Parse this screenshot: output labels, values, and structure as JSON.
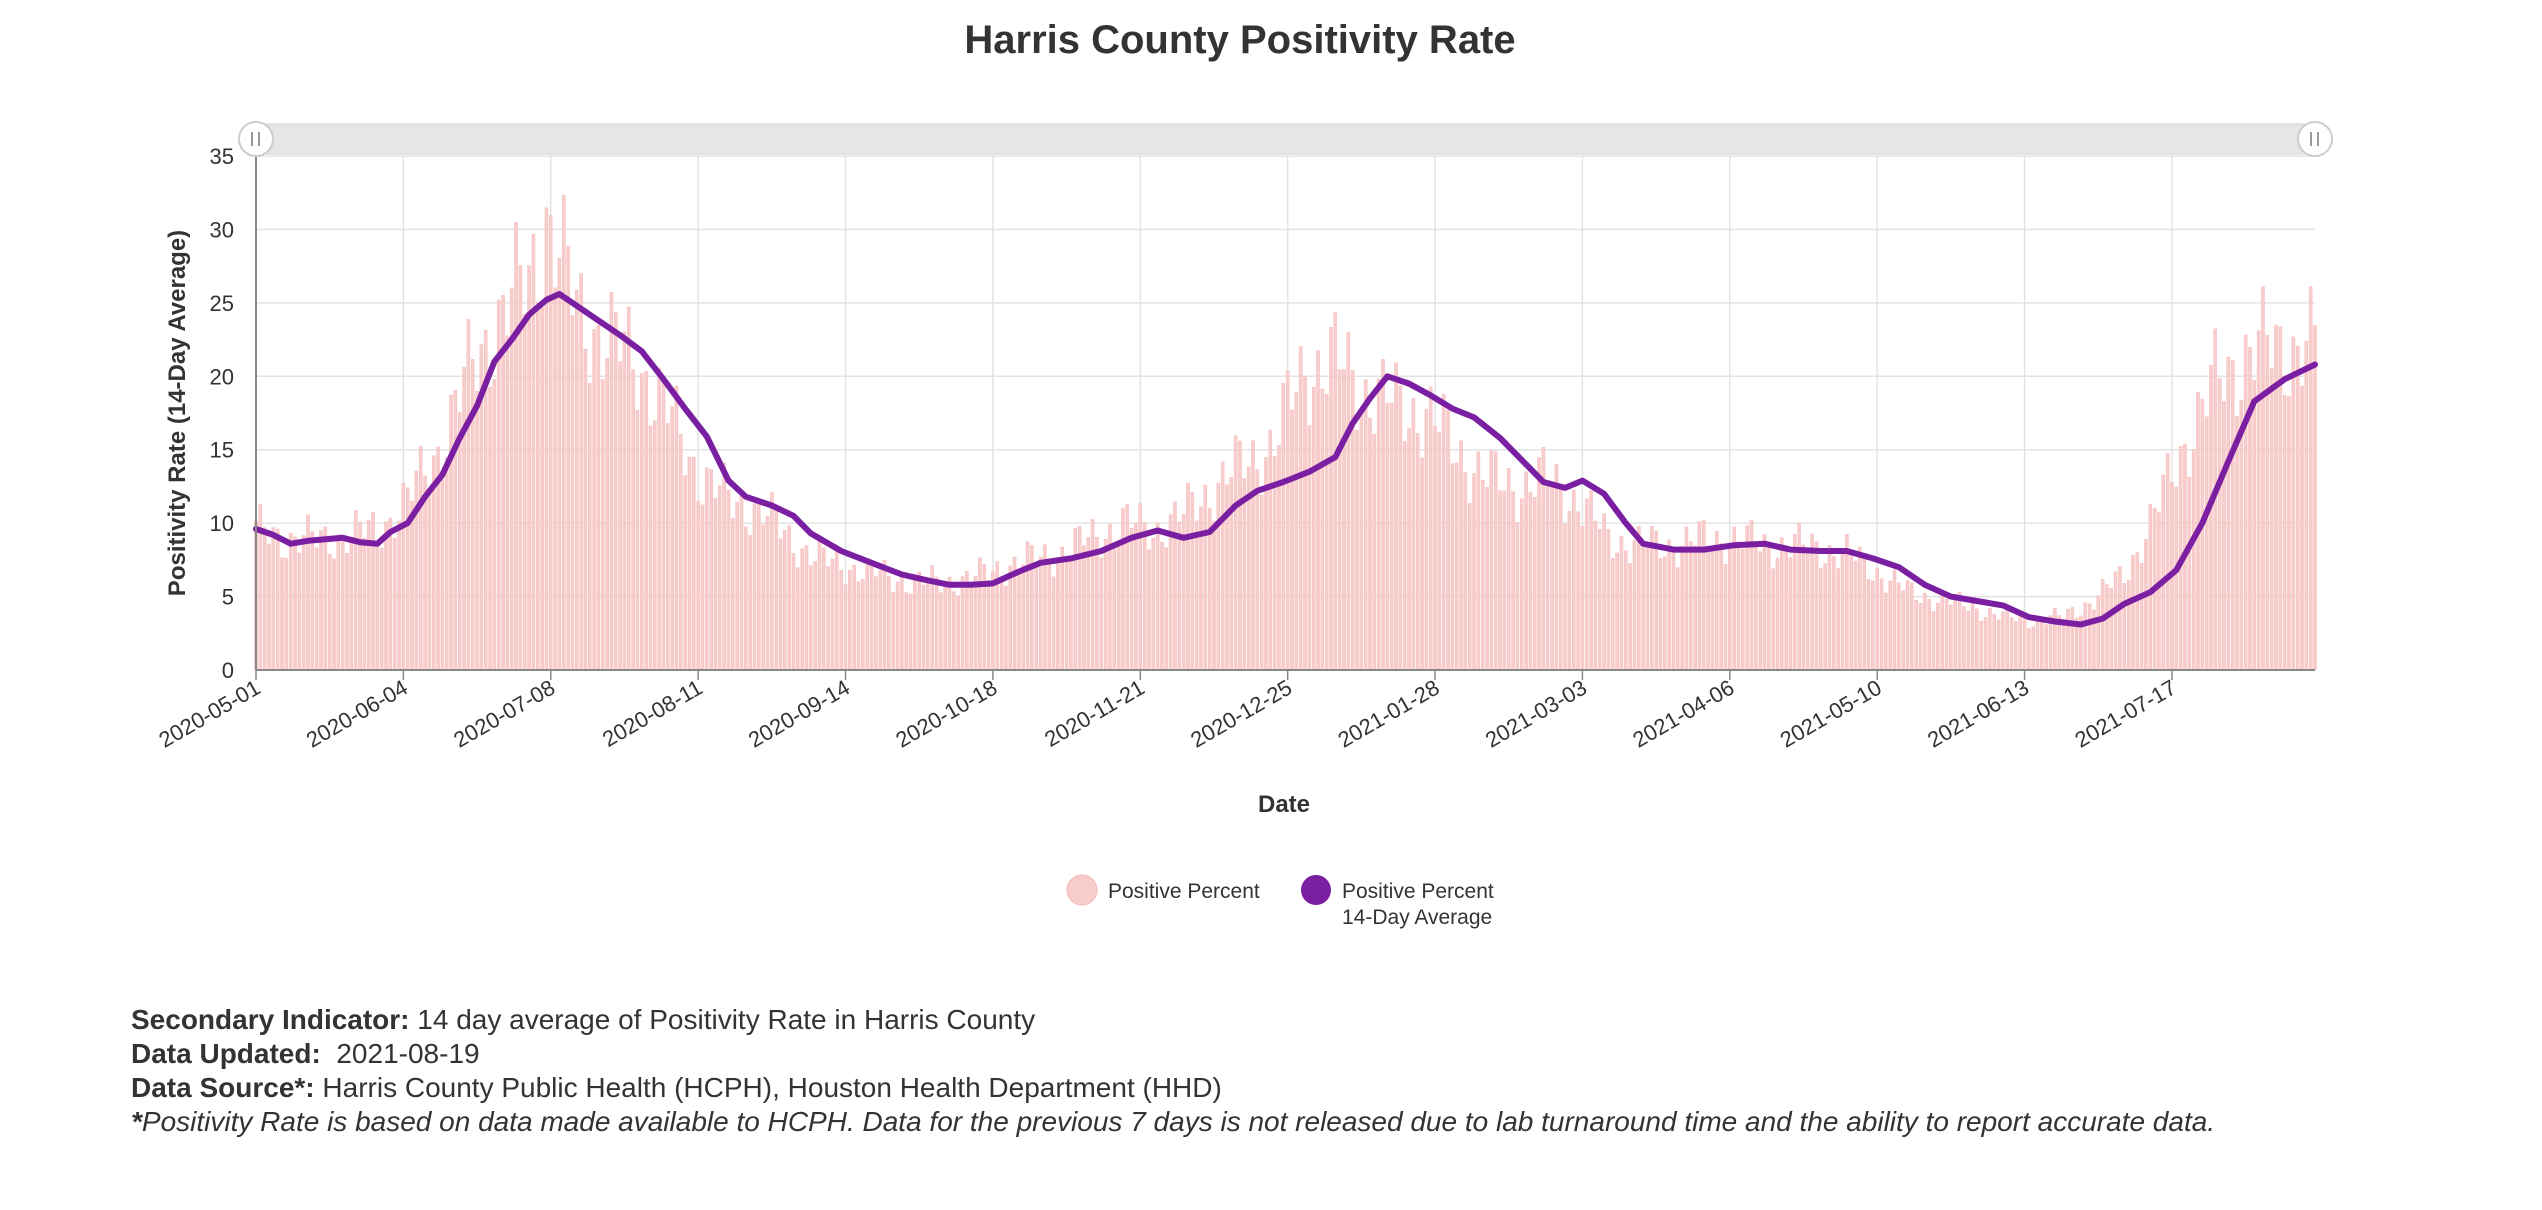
{
  "chart_data": {
    "type": "bar",
    "title": "Harris County Positivity Rate",
    "xlabel": "Date",
    "ylabel": "Positivity Rate (14-Day Average)",
    "ylim": [
      0,
      35
    ],
    "yticks": [
      0,
      5,
      10,
      15,
      20,
      25,
      30,
      35
    ],
    "x_start": "2020-05-01",
    "x_end": "2021-08-19",
    "xticks": [
      "2020-05-01",
      "2020-06-04",
      "2020-07-08",
      "2020-08-11",
      "2020-09-14",
      "2020-10-18",
      "2020-11-21",
      "2020-12-25",
      "2021-01-28",
      "2021-03-03",
      "2021-04-06",
      "2021-05-10",
      "2021-06-13",
      "2021-07-17"
    ],
    "grid": true,
    "legend_position": "bottom-center",
    "series": [
      {
        "name": "Positive Percent",
        "type": "bar",
        "color": "#f9cccc",
        "points": [
          [
            "2020-05-01",
            9.5
          ],
          [
            "2020-05-08",
            9.0
          ],
          [
            "2020-05-15",
            8.8
          ],
          [
            "2020-05-22",
            9.2
          ],
          [
            "2020-05-29",
            9.5
          ],
          [
            "2020-06-05",
            11.5
          ],
          [
            "2020-06-12",
            15.0
          ],
          [
            "2020-06-19",
            20.0
          ],
          [
            "2020-06-26",
            24.0
          ],
          [
            "2020-07-03",
            26.5
          ],
          [
            "2020-07-07",
            31.0
          ],
          [
            "2020-07-14",
            24.5
          ],
          [
            "2020-07-21",
            22.5
          ],
          [
            "2020-07-28",
            21.0
          ],
          [
            "2020-08-04",
            17.5
          ],
          [
            "2020-08-11",
            13.5
          ],
          [
            "2020-08-18",
            11.5
          ],
          [
            "2020-08-25",
            11.0
          ],
          [
            "2020-09-01",
            9.0
          ],
          [
            "2020-09-08",
            7.5
          ],
          [
            "2020-09-15",
            7.0
          ],
          [
            "2020-09-22",
            6.5
          ],
          [
            "2020-09-29",
            6.0
          ],
          [
            "2020-10-06",
            6.0
          ],
          [
            "2020-10-13",
            6.2
          ],
          [
            "2020-10-20",
            7.0
          ],
          [
            "2020-10-27",
            7.5
          ],
          [
            "2020-11-03",
            8.0
          ],
          [
            "2020-11-10",
            9.0
          ],
          [
            "2020-11-17",
            10.0
          ],
          [
            "2020-11-24",
            9.5
          ],
          [
            "2020-12-01",
            10.5
          ],
          [
            "2020-12-08",
            12.5
          ],
          [
            "2020-12-15",
            14.0
          ],
          [
            "2020-12-22",
            15.5
          ],
          [
            "2020-12-29",
            20.5
          ],
          [
            "2021-01-05",
            21.0
          ],
          [
            "2021-01-12",
            19.0
          ],
          [
            "2021-01-19",
            18.0
          ],
          [
            "2021-01-26",
            17.5
          ],
          [
            "2021-02-02",
            15.0
          ],
          [
            "2021-02-09",
            13.0
          ],
          [
            "2021-02-16",
            12.5
          ],
          [
            "2021-02-23",
            13.0
          ],
          [
            "2021-03-02",
            11.5
          ],
          [
            "2021-03-09",
            9.0
          ],
          [
            "2021-03-16",
            8.5
          ],
          [
            "2021-03-23",
            8.5
          ],
          [
            "2021-03-30",
            8.8
          ],
          [
            "2021-04-06",
            9.0
          ],
          [
            "2021-04-13",
            8.5
          ],
          [
            "2021-04-20",
            8.5
          ],
          [
            "2021-04-27",
            8.3
          ],
          [
            "2021-05-04",
            7.8
          ],
          [
            "2021-05-11",
            6.5
          ],
          [
            "2021-05-18",
            5.2
          ],
          [
            "2021-05-25",
            4.8
          ],
          [
            "2021-06-01",
            4.3
          ],
          [
            "2021-06-08",
            3.6
          ],
          [
            "2021-06-15",
            3.4
          ],
          [
            "2021-06-22",
            3.6
          ],
          [
            "2021-06-29",
            4.8
          ],
          [
            "2021-07-06",
            6.5
          ],
          [
            "2021-07-13",
            10.5
          ],
          [
            "2021-07-20",
            15.5
          ],
          [
            "2021-07-27",
            19.5
          ],
          [
            "2021-08-03",
            21.5
          ],
          [
            "2021-08-10",
            22.0
          ],
          [
            "2021-08-19",
            22.0
          ]
        ]
      },
      {
        "name": "Positive Percent\n14-Day Average",
        "type": "line",
        "color": "#7b1fa2",
        "points": [
          [
            "2020-05-01",
            9.6
          ],
          [
            "2020-05-05",
            9.2
          ],
          [
            "2020-05-09",
            8.6
          ],
          [
            "2020-05-13",
            8.8
          ],
          [
            "2020-05-17",
            8.9
          ],
          [
            "2020-05-21",
            9.0
          ],
          [
            "2020-05-25",
            8.7
          ],
          [
            "2020-05-29",
            8.6
          ],
          [
            "2020-06-01",
            9.4
          ],
          [
            "2020-06-05",
            10.0
          ],
          [
            "2020-06-09",
            11.8
          ],
          [
            "2020-06-13",
            13.3
          ],
          [
            "2020-06-17",
            15.8
          ],
          [
            "2020-06-21",
            18.0
          ],
          [
            "2020-06-25",
            21.0
          ],
          [
            "2020-06-29",
            22.5
          ],
          [
            "2020-07-03",
            24.2
          ],
          [
            "2020-07-07",
            25.2
          ],
          [
            "2020-07-10",
            25.6
          ],
          [
            "2020-07-14",
            24.8
          ],
          [
            "2020-07-19",
            23.8
          ],
          [
            "2020-07-24",
            22.8
          ],
          [
            "2020-07-29",
            21.7
          ],
          [
            "2020-08-03",
            19.8
          ],
          [
            "2020-08-08",
            17.8
          ],
          [
            "2020-08-13",
            15.9
          ],
          [
            "2020-08-18",
            12.9
          ],
          [
            "2020-08-22",
            11.8
          ],
          [
            "2020-08-28",
            11.2
          ],
          [
            "2020-09-02",
            10.5
          ],
          [
            "2020-09-06",
            9.3
          ],
          [
            "2020-09-13",
            8.1
          ],
          [
            "2020-09-20",
            7.3
          ],
          [
            "2020-09-27",
            6.5
          ],
          [
            "2020-10-03",
            6.1
          ],
          [
            "2020-10-08",
            5.8
          ],
          [
            "2020-10-13",
            5.8
          ],
          [
            "2020-10-18",
            5.9
          ],
          [
            "2020-10-24",
            6.7
          ],
          [
            "2020-10-29",
            7.3
          ],
          [
            "2020-11-05",
            7.6
          ],
          [
            "2020-11-12",
            8.1
          ],
          [
            "2020-11-19",
            9.0
          ],
          [
            "2020-11-25",
            9.5
          ],
          [
            "2020-12-01",
            9.0
          ],
          [
            "2020-12-07",
            9.4
          ],
          [
            "2020-12-13",
            11.2
          ],
          [
            "2020-12-18",
            12.2
          ],
          [
            "2020-12-24",
            12.8
          ],
          [
            "2020-12-30",
            13.5
          ],
          [
            "2021-01-05",
            14.5
          ],
          [
            "2021-01-09",
            16.8
          ],
          [
            "2021-01-13",
            18.5
          ],
          [
            "2021-01-17",
            20.0
          ],
          [
            "2021-01-22",
            19.5
          ],
          [
            "2021-01-27",
            18.7
          ],
          [
            "2021-02-01",
            17.8
          ],
          [
            "2021-02-06",
            17.2
          ],
          [
            "2021-02-12",
            15.8
          ],
          [
            "2021-02-18",
            14.0
          ],
          [
            "2021-02-22",
            12.8
          ],
          [
            "2021-02-27",
            12.4
          ],
          [
            "2021-03-03",
            12.9
          ],
          [
            "2021-03-08",
            12.0
          ],
          [
            "2021-03-13",
            10.0
          ],
          [
            "2021-03-17",
            8.6
          ],
          [
            "2021-03-24",
            8.2
          ],
          [
            "2021-03-31",
            8.2
          ],
          [
            "2021-04-07",
            8.5
          ],
          [
            "2021-04-14",
            8.6
          ],
          [
            "2021-04-20",
            8.2
          ],
          [
            "2021-04-27",
            8.1
          ],
          [
            "2021-05-03",
            8.1
          ],
          [
            "2021-05-09",
            7.6
          ],
          [
            "2021-05-15",
            7.0
          ],
          [
            "2021-05-21",
            5.8
          ],
          [
            "2021-05-27",
            5.0
          ],
          [
            "2021-06-02",
            4.7
          ],
          [
            "2021-06-08",
            4.4
          ],
          [
            "2021-06-14",
            3.6
          ],
          [
            "2021-06-20",
            3.3
          ],
          [
            "2021-06-26",
            3.1
          ],
          [
            "2021-07-01",
            3.5
          ],
          [
            "2021-07-06",
            4.5
          ],
          [
            "2021-07-12",
            5.3
          ],
          [
            "2021-07-18",
            6.8
          ],
          [
            "2021-07-24",
            10.0
          ],
          [
            "2021-07-30",
            14.2
          ],
          [
            "2021-08-05",
            18.3
          ],
          [
            "2021-08-12",
            19.8
          ],
          [
            "2021-08-19",
            20.8
          ]
        ]
      }
    ]
  },
  "footer": {
    "secondary_indicator_label": "Secondary Indicator:",
    "secondary_indicator_value": " 14 day average of Positivity Rate in Harris County",
    "data_updated_label": "Data Updated:",
    "data_updated_value": "  2021-08-19",
    "data_source_label": "Data Source*:",
    "data_source_value": " Harris County Public Health (HCPH), Houston Health Department (HHD)",
    "note_star": "*",
    "note_text": "Positivity Rate is based on data made available to HCPH. Data for the previous 7 days is not released due to lab turnaround time and the ability to report accurate data."
  }
}
